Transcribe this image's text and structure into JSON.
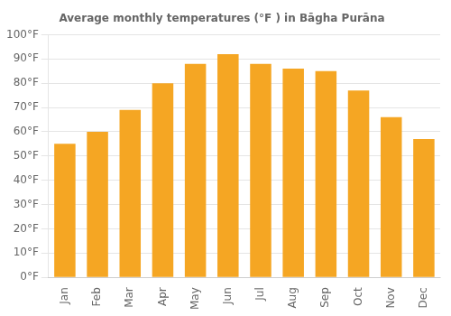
{
  "chart_data": {
    "type": "bar",
    "title": "Average monthly temperatures (°F ) in Bāgha Purāna",
    "categories": [
      "Jan",
      "Feb",
      "Mar",
      "Apr",
      "May",
      "Jun",
      "Jul",
      "Aug",
      "Sep",
      "Oct",
      "Nov",
      "Dec"
    ],
    "values": [
      55,
      60,
      69,
      80,
      88,
      92,
      88,
      86,
      85,
      77,
      66,
      57
    ],
    "color": "#F5A623",
    "ylim": [
      0,
      100
    ],
    "yticks": [
      {
        "value": 0,
        "label": "0°F"
      },
      {
        "value": 10,
        "label": "10°F"
      },
      {
        "value": 20,
        "label": "20°F"
      },
      {
        "value": 30,
        "label": "30°F"
      },
      {
        "value": 40,
        "label": "40°F"
      },
      {
        "value": 50,
        "label": "50°F"
      },
      {
        "value": 60,
        "label": "60°F"
      },
      {
        "value": 70,
        "label": "70°F"
      },
      {
        "value": 80,
        "label": "80°F"
      },
      {
        "value": 90,
        "label": "90°F"
      },
      {
        "value": 100,
        "label": "100°F"
      }
    ],
    "grid": true
  }
}
